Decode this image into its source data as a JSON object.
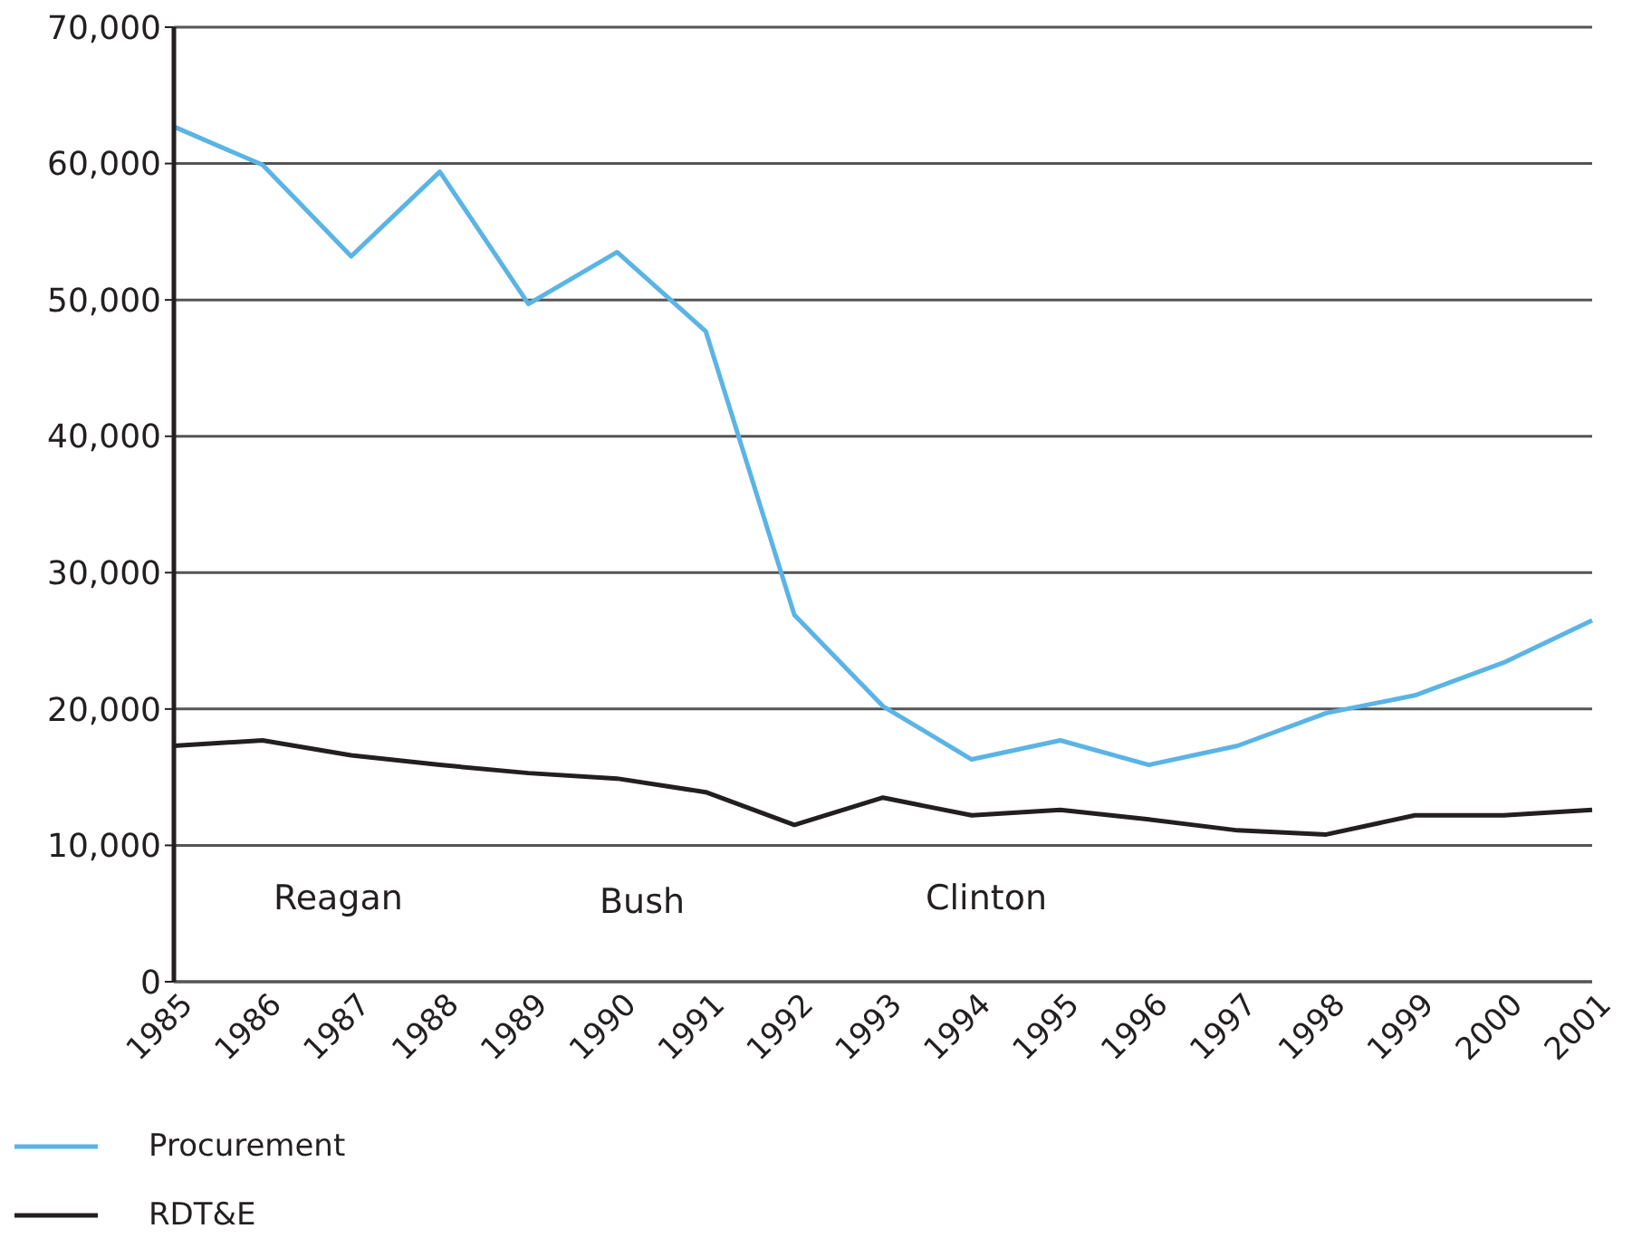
{
  "chart_data": {
    "type": "line",
    "categories": [
      "1985",
      "1986",
      "1987",
      "1988",
      "1989",
      "1990",
      "1991",
      "1992",
      "1993",
      "1994",
      "1995",
      "1996",
      "1997",
      "1998",
      "1999",
      "2000",
      "2001"
    ],
    "series": [
      {
        "name": "Procurement",
        "color": "#5ab4e5",
        "values": [
          62700,
          59900,
          53200,
          59400,
          49700,
          53500,
          47700,
          26900,
          20200,
          16300,
          17700,
          15900,
          17300,
          19700,
          21000,
          23400,
          26500
        ]
      },
      {
        "name": "RDT&E",
        "color": "#231f20",
        "values": [
          17300,
          17700,
          16600,
          15900,
          15300,
          14900,
          13900,
          11500,
          13500,
          12200,
          12600,
          11900,
          11100,
          10800,
          12200,
          12200,
          12600
        ]
      }
    ],
    "ylim": [
      0,
      70000
    ],
    "yticks": [
      0,
      {
        "value": 10000,
        "label": "10,000"
      },
      {
        "value": 20000,
        "label": "20,000"
      },
      {
        "value": 30000,
        "label": "30,000"
      },
      {
        "value": 40000,
        "label": "40,000"
      },
      {
        "value": 50000,
        "label": "50,000"
      },
      {
        "value": 60000,
        "label": "60,000"
      },
      {
        "value": 70000,
        "label": "70,000"
      }
    ],
    "grid": "y",
    "legend": "bottom left",
    "marker": "none",
    "line_style": "solid",
    "annotations": [
      "Reagan",
      "Bush",
      "Clinton"
    ]
  }
}
